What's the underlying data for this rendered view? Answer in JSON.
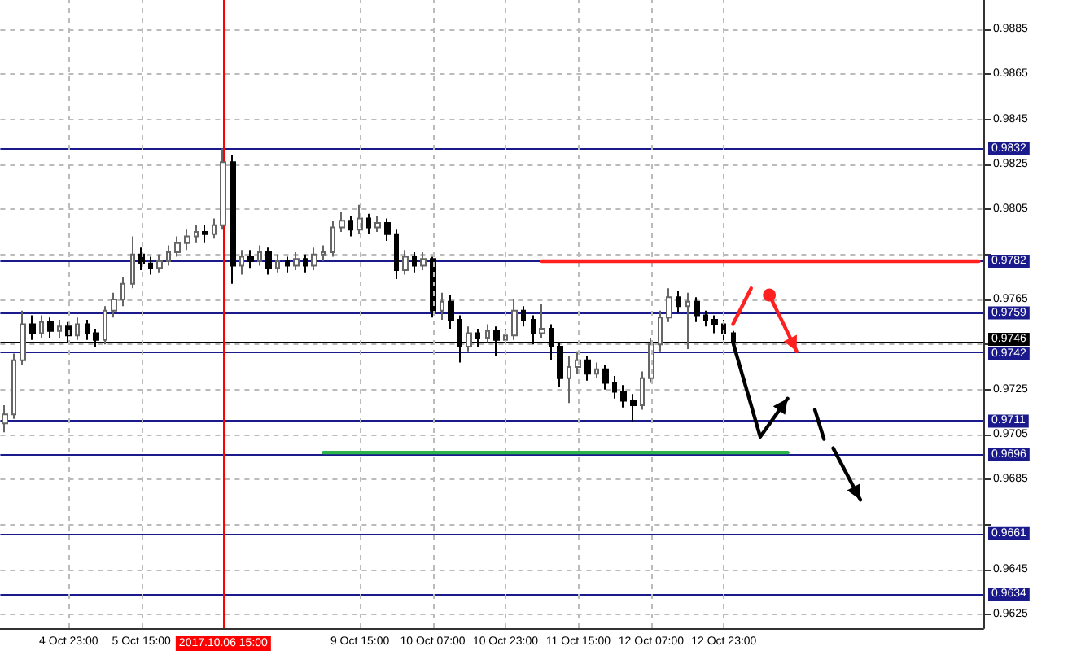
{
  "chart_data": {
    "type": "candlestick",
    "categories": [
      null,
      null,
      null,
      null,
      null,
      null,
      null,
      "4 Oct 23:00",
      null,
      null,
      null,
      null,
      null,
      null,
      null,
      "5 Oct 15:00",
      null,
      null,
      null,
      null,
      null,
      null,
      null,
      null,
      "2017.10.06 15:00",
      null,
      null,
      null,
      null,
      null,
      null,
      null,
      null,
      null,
      null,
      null,
      null,
      null,
      null,
      "9 Oct 15:00",
      null,
      null,
      null,
      null,
      null,
      null,
      null,
      "10 Oct 07:00",
      null,
      null,
      null,
      null,
      null,
      null,
      null,
      "10 Oct 23:00",
      null,
      null,
      null,
      null,
      null,
      null,
      null,
      "11 Oct 15:00",
      null,
      null,
      null,
      null,
      null,
      null,
      null,
      "12 Oct 07:00",
      null,
      null,
      null,
      null,
      null,
      null,
      null,
      "12 Oct 23:00",
      null,
      null,
      null,
      null,
      null,
      null,
      null,
      null,
      null,
      null,
      null,
      null,
      null,
      null,
      null,
      null,
      null,
      null,
      null,
      null,
      null,
      null,
      null,
      null,
      null,
      null,
      null,
      null
    ],
    "ohlc": [
      [
        0.971,
        0.9718,
        0.9706,
        0.9714
      ],
      [
        0.9714,
        0.9741,
        0.9712,
        0.9738
      ],
      [
        0.9738,
        0.976,
        0.9736,
        0.9754
      ],
      [
        0.9754,
        0.9758,
        0.9747,
        0.975
      ],
      [
        0.975,
        0.9758,
        0.9748,
        0.9755
      ],
      [
        0.9755,
        0.9757,
        0.9748,
        0.9751
      ],
      [
        0.9751,
        0.9756,
        0.9748,
        0.9753
      ],
      [
        0.9753,
        0.9755,
        0.9746,
        0.9749
      ],
      [
        0.9749,
        0.9757,
        0.9747,
        0.9754
      ],
      [
        0.9754,
        0.9756,
        0.9747,
        0.975
      ],
      [
        0.975,
        0.9752,
        0.9744,
        0.9747
      ],
      [
        0.9747,
        0.9762,
        0.9745,
        0.976
      ],
      [
        0.976,
        0.9768,
        0.9757,
        0.9765
      ],
      [
        0.9765,
        0.9775,
        0.9762,
        0.9772
      ],
      [
        0.9772,
        0.9793,
        0.977,
        0.9785
      ],
      [
        0.9785,
        0.9788,
        0.9778,
        0.9781
      ],
      [
        0.9781,
        0.9784,
        0.9776,
        0.9779
      ],
      [
        0.9779,
        0.9785,
        0.9777,
        0.9782
      ],
      [
        0.9782,
        0.9789,
        0.978,
        0.9786
      ],
      [
        0.9786,
        0.9793,
        0.9784,
        0.979
      ],
      [
        0.979,
        0.9796,
        0.9787,
        0.9793
      ],
      [
        0.9793,
        0.9798,
        0.979,
        0.9795
      ],
      [
        0.9795,
        0.9798,
        0.979,
        0.9794
      ],
      [
        0.9794,
        0.9801,
        0.9792,
        0.9798
      ],
      [
        0.9798,
        0.9832,
        0.9796,
        0.9826
      ],
      [
        0.9826,
        0.9829,
        0.9772,
        0.978
      ],
      [
        0.978,
        0.9787,
        0.9776,
        0.9784
      ],
      [
        0.9784,
        0.9787,
        0.9779,
        0.9782
      ],
      [
        0.9782,
        0.9789,
        0.978,
        0.9786
      ],
      [
        0.9786,
        0.9788,
        0.9776,
        0.9779
      ],
      [
        0.9779,
        0.9785,
        0.9777,
        0.9782
      ],
      [
        0.9782,
        0.9784,
        0.9777,
        0.978
      ],
      [
        0.978,
        0.9786,
        0.9778,
        0.9783
      ],
      [
        0.9783,
        0.9785,
        0.9777,
        0.978
      ],
      [
        0.978,
        0.9788,
        0.9778,
        0.9785
      ],
      [
        0.9785,
        0.9789,
        0.9782,
        0.9786
      ],
      [
        0.9786,
        0.98,
        0.9784,
        0.9797
      ],
      [
        0.9797,
        0.9804,
        0.9795,
        0.98
      ],
      [
        0.98,
        0.9802,
        0.9793,
        0.9796
      ],
      [
        0.9796,
        0.9807,
        0.9794,
        0.9801
      ],
      [
        0.9801,
        0.9803,
        0.9794,
        0.9797
      ],
      [
        0.9797,
        0.9802,
        0.9795,
        0.9799
      ],
      [
        0.9799,
        0.9801,
        0.9791,
        0.9794
      ],
      [
        0.9794,
        0.9796,
        0.9774,
        0.9778
      ],
      [
        0.9778,
        0.9787,
        0.9776,
        0.9784
      ],
      [
        0.9784,
        0.9786,
        0.9777,
        0.978
      ],
      [
        0.978,
        0.9786,
        0.9778,
        0.9783
      ],
      [
        0.9783,
        0.9784,
        0.9757,
        0.976
      ],
      [
        0.976,
        0.9768,
        0.9756,
        0.9764
      ],
      [
        0.9764,
        0.9767,
        0.9752,
        0.9756
      ],
      [
        0.9756,
        0.9758,
        0.9737,
        0.9744
      ],
      [
        0.9744,
        0.9753,
        0.9742,
        0.975
      ],
      [
        0.975,
        0.9752,
        0.9744,
        0.9748
      ],
      [
        0.9748,
        0.9754,
        0.9746,
        0.9751
      ],
      [
        0.9751,
        0.9753,
        0.974,
        0.9747
      ],
      [
        0.9747,
        0.9752,
        0.9745,
        0.9749
      ],
      [
        0.9749,
        0.9765,
        0.9747,
        0.976
      ],
      [
        0.976,
        0.9762,
        0.9753,
        0.9756
      ],
      [
        0.9756,
        0.9758,
        0.9745,
        0.975
      ],
      [
        0.975,
        0.9763,
        0.9748,
        0.9752
      ],
      [
        0.9752,
        0.9754,
        0.9738,
        0.9744
      ],
      [
        0.9744,
        0.9746,
        0.9726,
        0.973
      ],
      [
        0.973,
        0.974,
        0.9719,
        0.9735
      ],
      [
        0.9735,
        0.9742,
        0.9732,
        0.9738
      ],
      [
        0.9738,
        0.974,
        0.9729,
        0.9732
      ],
      [
        0.9732,
        0.9737,
        0.973,
        0.9734
      ],
      [
        0.9734,
        0.9736,
        0.9725,
        0.9728
      ],
      [
        0.9728,
        0.9731,
        0.9721,
        0.9724
      ],
      [
        0.9724,
        0.9727,
        0.9717,
        0.972
      ],
      [
        0.972,
        0.9723,
        0.9711,
        0.9718
      ],
      [
        0.9718,
        0.9733,
        0.9716,
        0.973
      ],
      [
        0.973,
        0.9748,
        0.9728,
        0.9745
      ],
      [
        0.9745,
        0.976,
        0.9742,
        0.9757
      ],
      [
        0.9757,
        0.977,
        0.9755,
        0.9766
      ],
      [
        0.9766,
        0.9769,
        0.9759,
        0.9762
      ],
      [
        0.9762,
        0.9768,
        0.9743,
        0.9764
      ],
      [
        0.9764,
        0.9766,
        0.9755,
        0.9758
      ],
      [
        0.9758,
        0.976,
        0.9753,
        0.9756
      ],
      [
        0.9756,
        0.9758,
        0.975,
        0.9754
      ],
      [
        0.9754,
        0.9756,
        0.9745,
        0.975
      ],
      [
        0.975,
        0.9751,
        0.9744,
        0.9746
      ],
      null,
      null,
      null,
      null,
      null,
      null,
      null,
      null,
      null,
      null,
      null,
      null,
      null,
      null,
      null,
      null,
      null,
      null,
      null,
      null,
      null,
      null,
      null,
      null,
      null,
      null,
      null
    ],
    "series": [
      {
        "type": "line",
        "color": "#ff2020",
        "values": [
          null,
          null,
          null,
          null,
          null,
          null,
          null,
          null,
          null,
          null,
          null,
          null,
          null,
          null,
          null,
          null,
          null,
          null,
          null,
          null,
          null,
          null,
          null,
          null,
          null,
          null,
          null,
          null,
          null,
          null,
          null,
          null,
          null,
          null,
          null,
          null,
          null,
          null,
          null,
          null,
          null,
          null,
          null,
          null,
          null,
          null,
          null,
          null,
          null,
          null,
          null,
          null,
          null,
          null,
          null,
          null,
          null,
          null,
          null,
          0.9782,
          0.9782,
          0.9782,
          0.9782,
          0.9782,
          0.9782,
          0.9782,
          0.9782,
          0.9782,
          0.9782,
          0.9782,
          0.9782,
          0.9782,
          0.9782,
          0.9782,
          0.9782,
          0.9782,
          0.9782,
          0.9782,
          0.9782,
          0.9782,
          0.9782,
          0.9782,
          0.9782,
          0.9782,
          0.9782,
          0.9782,
          0.9782,
          0.9782,
          0.9782,
          0.9782,
          0.9782,
          0.9782,
          0.9782,
          0.9782,
          0.9782,
          0.9782,
          0.9782,
          0.9782,
          0.9782,
          0.9782,
          0.9782,
          0.9782,
          0.9782,
          0.9782,
          0.9782,
          0.9782,
          0.9782,
          0.9782
        ]
      },
      {
        "type": "line",
        "color": "#2cb34a",
        "values": [
          null,
          null,
          null,
          null,
          null,
          null,
          null,
          null,
          null,
          null,
          null,
          null,
          null,
          null,
          null,
          null,
          null,
          null,
          null,
          null,
          null,
          null,
          null,
          null,
          null,
          null,
          null,
          null,
          null,
          null,
          null,
          null,
          null,
          null,
          null,
          0.9697,
          0.9697,
          0.9697,
          0.9697,
          0.9697,
          0.9697,
          0.9697,
          0.9697,
          0.9697,
          0.9697,
          0.9697,
          0.9697,
          0.9697,
          0.9697,
          0.9697,
          0.9697,
          0.9697,
          0.9697,
          0.9697,
          0.9697,
          0.9697,
          0.9697,
          0.9697,
          0.9697,
          0.9697,
          0.9697,
          0.9697,
          0.9697,
          0.9697,
          0.9697,
          0.9697,
          0.9697,
          0.9697,
          0.9697,
          0.9697,
          0.9697,
          0.9697,
          0.9697,
          0.9697,
          0.9697,
          0.9697,
          0.9697,
          0.9697,
          0.9697,
          0.9697,
          0.9697,
          0.9697,
          0.9697,
          0.9697,
          0.9697,
          0.9697,
          0.9697,
          null,
          null,
          null,
          null,
          null,
          null,
          null,
          null,
          null,
          null,
          null,
          null,
          null,
          null,
          null,
          null,
          null,
          null,
          null,
          null,
          null
        ]
      }
    ],
    "ylim": [
      0.9619,
      0.9898
    ],
    "yticks": [
      0.9625,
      0.9645,
      {
        "value": 0.9665,
        "label": null
      },
      0.9685,
      0.9705,
      0.9725,
      {
        "value": 0.9745,
        "label": null
      },
      0.9765,
      {
        "value": 0.9785,
        "label": null
      },
      0.9805,
      0.9825,
      0.9845,
      0.9865,
      0.9885
    ],
    "grid": true,
    "ref_lines": [
      {
        "axis": "y",
        "value": 0.9832,
        "label": "0.9832",
        "color": "#1a1a8c"
      },
      {
        "axis": "y",
        "value": 0.9782,
        "label": "0.9782",
        "color": "#1a1a8c"
      },
      {
        "axis": "y",
        "value": 0.9759,
        "label": "0.9759",
        "color": "#1a1a8c"
      },
      {
        "axis": "y",
        "value": 0.9746,
        "label": "0.9746",
        "color": "#000000"
      },
      {
        "axis": "y",
        "value": 0.9742,
        "label": "0.9742",
        "color": "#1a1a8c"
      },
      {
        "axis": "y",
        "value": 0.9711,
        "label": "0.9711",
        "color": "#1a1a8c"
      },
      {
        "axis": "y",
        "value": 0.9696,
        "label": "0.9696",
        "color": "#1a1a8c"
      },
      {
        "axis": "y",
        "value": 0.9661,
        "label": "0.9661",
        "color": "#1a1a8c"
      },
      {
        "axis": "y",
        "value": 0.9634,
        "label": "0.9634",
        "color": "#1a1a8c"
      },
      {
        "axis": "x",
        "value": "2017.10.06 15:00",
        "color": "#ff0000"
      }
    ]
  }
}
